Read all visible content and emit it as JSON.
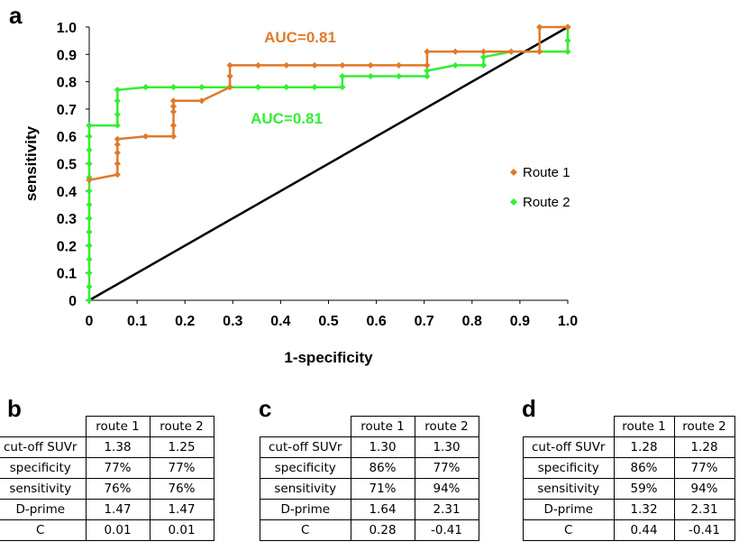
{
  "chart_data": {
    "type": "line",
    "panel_label": "a",
    "xlabel": "1-specificity",
    "ylabel": "sensitivity",
    "xlim": [
      0,
      1
    ],
    "ylim": [
      0,
      1
    ],
    "xticks": [
      "0",
      "0.1",
      "0.2",
      "0.3",
      "0.4",
      "0.5",
      "0.6",
      "0.7",
      "0.8",
      "0.9",
      "1.0"
    ],
    "yticks": [
      "0",
      "0.1",
      "0.2",
      "0.3",
      "0.4",
      "0.5",
      "0.6",
      "0.7",
      "0.8",
      "0.9",
      "1.0"
    ],
    "grid": false,
    "legend_position": "right",
    "reference_line": {
      "x": [
        0,
        1
      ],
      "y": [
        0,
        1
      ],
      "color": "#000000"
    },
    "series": [
      {
        "name": "Route 1",
        "color": "#e07a2a",
        "marker": "diamond",
        "annotation": "AUC=0.81",
        "x": [
          0,
          0,
          0.059,
          0.059,
          0.059,
          0.059,
          0.059,
          0.118,
          0.176,
          0.176,
          0.176,
          0.176,
          0.176,
          0.235,
          0.294,
          0.294,
          0.294,
          0.353,
          0.412,
          0.471,
          0.529,
          0.588,
          0.647,
          0.706,
          0.706,
          0.765,
          0.824,
          0.882,
          0.941,
          0.941,
          1,
          1
        ],
        "y": [
          0.44,
          0.44,
          0.46,
          0.5,
          0.54,
          0.57,
          0.59,
          0.6,
          0.6,
          0.64,
          0.69,
          0.71,
          0.73,
          0.73,
          0.78,
          0.82,
          0.86,
          0.86,
          0.86,
          0.86,
          0.86,
          0.86,
          0.86,
          0.86,
          0.91,
          0.91,
          0.91,
          0.91,
          0.91,
          1.0,
          1.0,
          1.0
        ]
      },
      {
        "name": "Route 2",
        "color": "#33ee33",
        "marker": "diamond",
        "annotation": "AUC=0.81",
        "x": [
          0,
          0,
          0,
          0,
          0,
          0,
          0,
          0,
          0,
          0,
          0,
          0,
          0,
          0,
          0,
          0,
          0.059,
          0.059,
          0.059,
          0.059,
          0.118,
          0.176,
          0.235,
          0.294,
          0.353,
          0.412,
          0.471,
          0.529,
          0.529,
          0.588,
          0.647,
          0.706,
          0.706,
          0.765,
          0.824,
          0.824,
          0.882,
          0.941,
          1,
          1,
          1
        ],
        "y": [
          0,
          0.05,
          0.1,
          0.15,
          0.2,
          0.25,
          0.3,
          0.35,
          0.4,
          0.45,
          0.5,
          0.55,
          0.6,
          0.64,
          0.64,
          0.64,
          0.64,
          0.68,
          0.73,
          0.77,
          0.78,
          0.78,
          0.78,
          0.78,
          0.78,
          0.78,
          0.78,
          0.78,
          0.82,
          0.82,
          0.82,
          0.82,
          0.84,
          0.86,
          0.86,
          0.89,
          0.91,
          0.91,
          0.91,
          0.95,
          1.0
        ]
      }
    ]
  },
  "tables": [
    {
      "label": "b",
      "columns": [
        "route 1",
        "route 2"
      ],
      "rows": [
        {
          "metric": "cut-off SUVr",
          "values": [
            "1.38",
            "1.25"
          ]
        },
        {
          "metric": "specificity",
          "values": [
            "77%",
            "77%"
          ]
        },
        {
          "metric": "sensitivity",
          "values": [
            "76%",
            "76%"
          ]
        },
        {
          "metric": "D-prime",
          "values": [
            "1.47",
            "1.47"
          ]
        },
        {
          "metric": "C",
          "values": [
            "0.01",
            "0.01"
          ]
        }
      ]
    },
    {
      "label": "c",
      "columns": [
        "route 1",
        "route 2"
      ],
      "rows": [
        {
          "metric": "cut-off SUVr",
          "values": [
            "1.30",
            "1.30"
          ]
        },
        {
          "metric": "specificity",
          "values": [
            "86%",
            "77%"
          ]
        },
        {
          "metric": "sensitivity",
          "values": [
            "71%",
            "94%"
          ]
        },
        {
          "metric": "D-prime",
          "values": [
            "1.64",
            "2.31"
          ]
        },
        {
          "metric": "C",
          "values": [
            "0.28",
            "-0.41"
          ]
        }
      ]
    },
    {
      "label": "d",
      "columns": [
        "route 1",
        "route 2"
      ],
      "rows": [
        {
          "metric": "cut-off SUVr",
          "values": [
            "1.28",
            "1.28"
          ]
        },
        {
          "metric": "specificity",
          "values": [
            "86%",
            "77%"
          ]
        },
        {
          "metric": "sensitivity",
          "values": [
            "59%",
            "94%"
          ]
        },
        {
          "metric": "D-prime",
          "values": [
            "1.32",
            "2.31"
          ]
        },
        {
          "metric": "C",
          "values": [
            "0.44",
            "-0.41"
          ]
        }
      ]
    }
  ]
}
